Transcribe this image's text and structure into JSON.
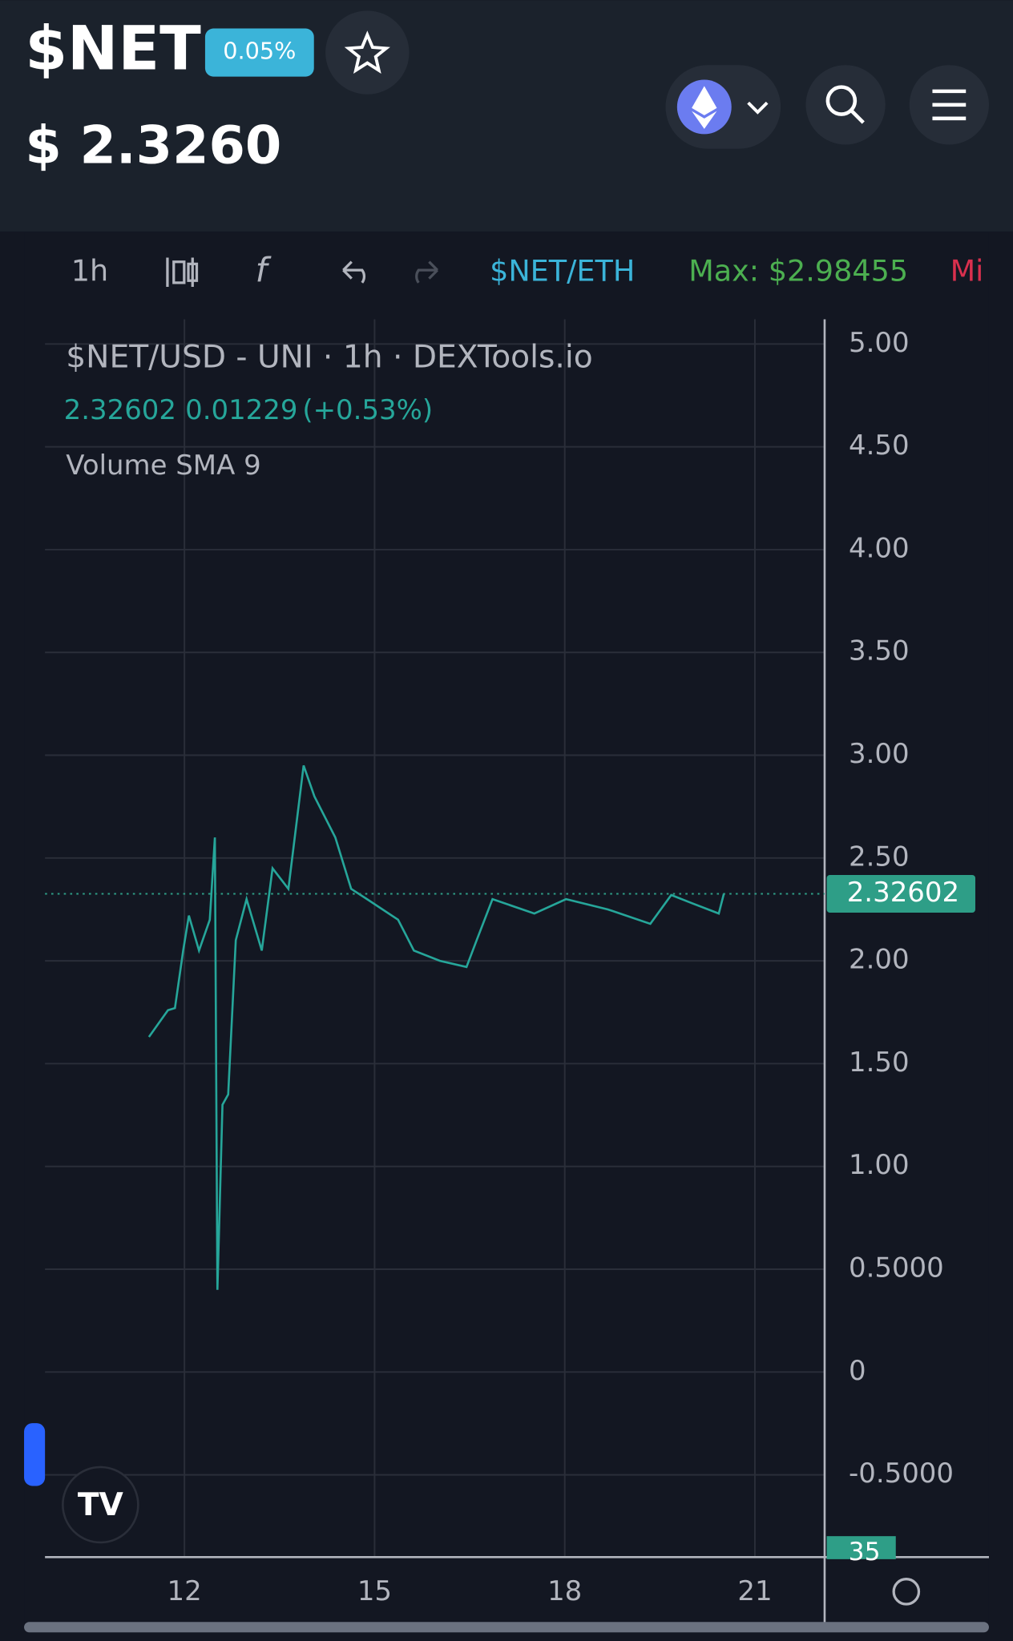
{
  "header": {
    "symbol": "$NET",
    "change": "0.05%",
    "price": "$ 2.3260"
  },
  "toolbar": {
    "interval": "1h",
    "pair": "$NET/ETH",
    "max": "Max: $2.98455",
    "min": "Mi"
  },
  "chart_data": {
    "type": "line",
    "title": "$NET/USD - UNI · 1h · DEXTools.io",
    "legend_values": [
      "2.32602",
      "0.01229",
      "(+0.53%)"
    ],
    "indicator": "Volume SMA 9",
    "x": [
      11.44,
      11.74,
      11.85,
      11.98,
      12.07,
      12.23,
      12.4,
      12.48,
      12.52,
      12.6,
      12.69,
      12.81,
      12.98,
      13.22,
      13.39,
      13.64,
      13.88,
      14.05,
      14.38,
      14.63,
      14.88,
      15.37,
      15.62,
      16.03,
      16.45,
      16.61,
      16.86,
      17.52,
      18.02,
      18.68,
      19.35,
      19.68,
      20.01,
      20.43,
      20.51
    ],
    "values": [
      1.63,
      1.76,
      1.77,
      2.05,
      2.22,
      2.05,
      2.2,
      2.6,
      0.4,
      1.3,
      1.35,
      2.1,
      2.3,
      2.05,
      2.45,
      2.35,
      2.95,
      2.8,
      2.6,
      2.35,
      2.3,
      2.2,
      2.05,
      2.0,
      1.97,
      2.1,
      2.3,
      2.23,
      2.3,
      2.25,
      2.18,
      2.32,
      2.28,
      2.23,
      2.326
    ],
    "color": "#26a69a",
    "last_price": 2.32602,
    "last_price_color": "#2e9e87",
    "volume_label": "35",
    "xlim": [
      9.8,
      22.1
    ],
    "xticks": [
      12,
      15,
      18,
      21
    ],
    "ylim": [
      -0.9,
      5.12
    ],
    "yticks": [
      {
        "value": -0.5,
        "label": "-0.5000"
      },
      0,
      {
        "value": 0.5,
        "label": "0.5000"
      },
      {
        "value": 1,
        "label": "1.00"
      },
      {
        "value": 1.5,
        "label": "1.50"
      },
      {
        "value": 2,
        "label": "2.00"
      },
      {
        "value": 2.5,
        "label": "2.50"
      },
      {
        "value": 3,
        "label": "3.00"
      },
      {
        "value": 3.5,
        "label": "3.50"
      },
      {
        "value": 4,
        "label": "4.00"
      },
      {
        "value": 4.5,
        "label": "4.50"
      },
      {
        "value": 5,
        "label": "5.00"
      }
    ],
    "grid": true
  }
}
